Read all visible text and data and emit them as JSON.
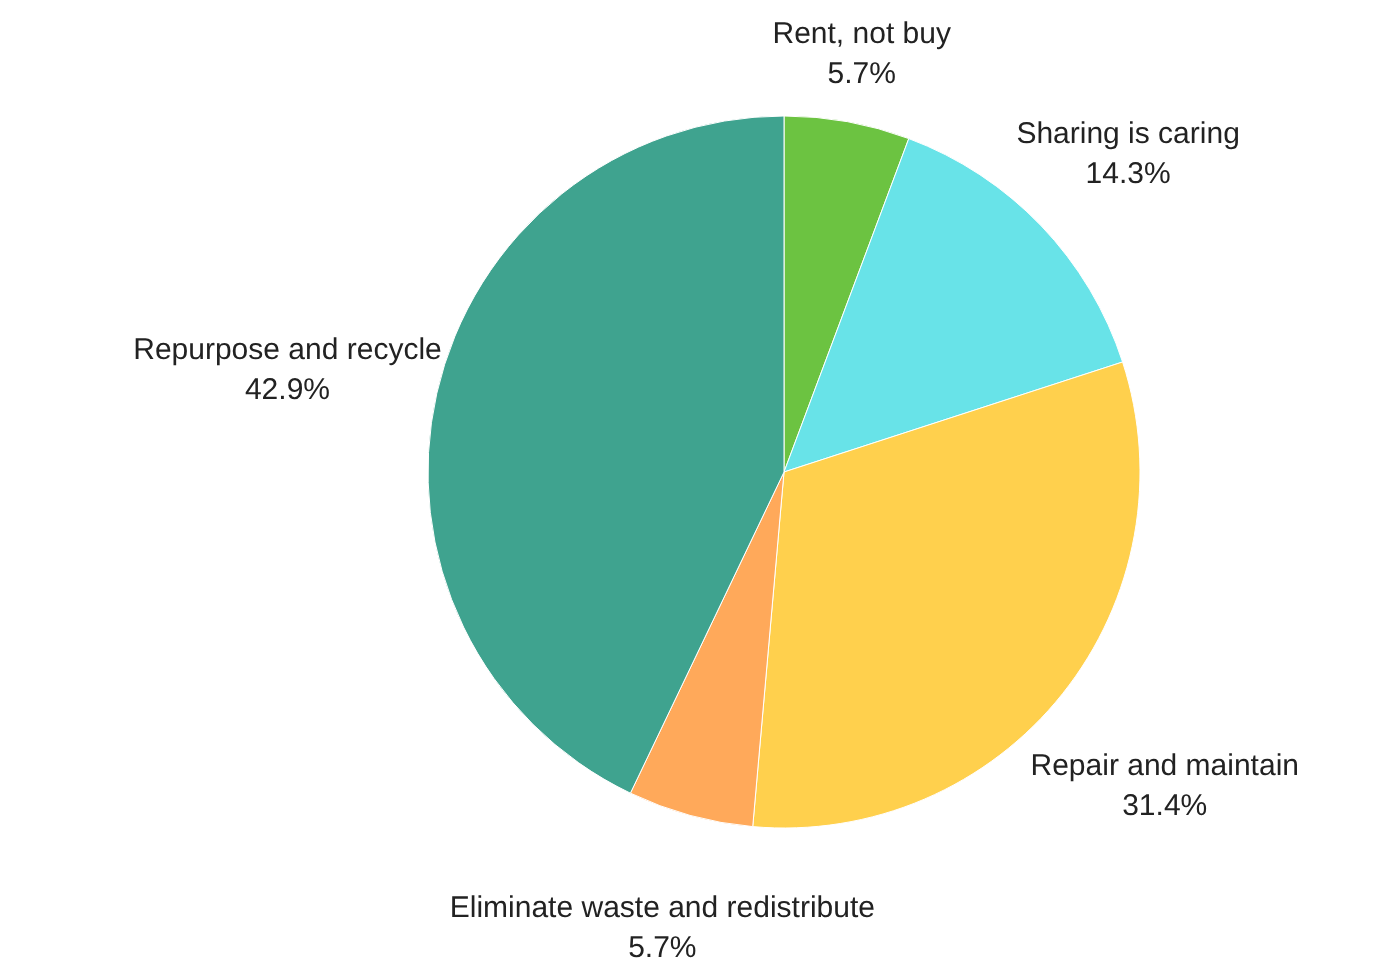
{
  "chart_data": {
    "type": "pie",
    "categories": [
      "Rent, not buy",
      "Sharing is caring",
      "Repair and maintain",
      "Eliminate waste and redistribute",
      "Repurpose and recycle"
    ],
    "values": [
      5.7,
      14.3,
      31.4,
      5.7,
      42.9
    ],
    "colors": [
      "#6cc341",
      "#68e3e8",
      "#ffd04d",
      "#ffa95a",
      "#3fa38f"
    ],
    "value_labels": [
      "5.7%",
      "14.3%",
      "31.4%",
      "5.7%",
      "42.9%"
    ]
  }
}
